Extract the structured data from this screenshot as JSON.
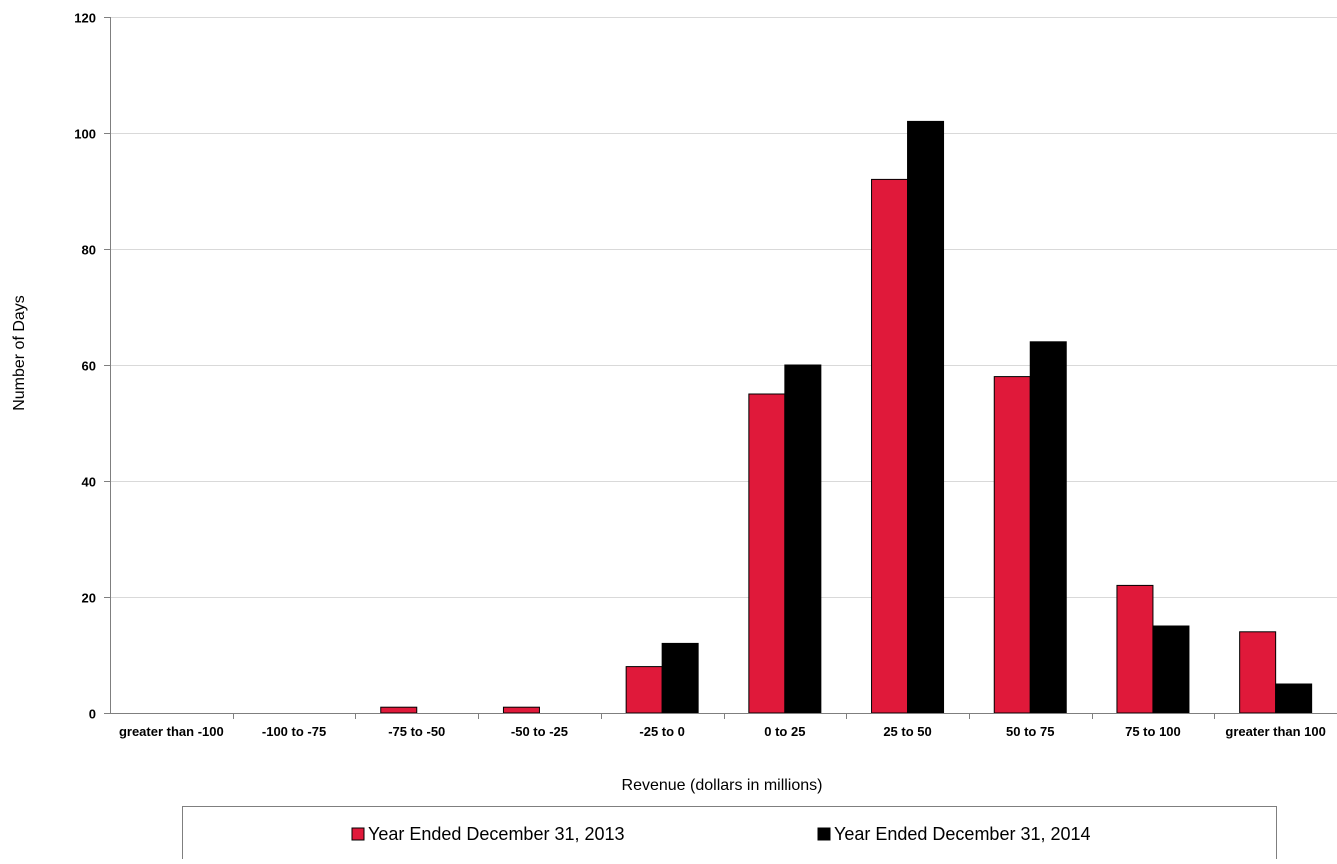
{
  "chart_data": {
    "type": "bar",
    "title": "",
    "xlabel": "Revenue (dollars in millions)",
    "ylabel": "Number of Days",
    "ylim": [
      0,
      120
    ],
    "yticks": [
      0,
      20,
      40,
      60,
      80,
      100,
      120
    ],
    "grid": true,
    "legend_position": "bottom",
    "categories": [
      "greater than -100",
      "-100 to -75",
      "-75 to -50",
      "-50 to -25",
      "-25 to 0",
      "0 to 25",
      "25 to 50",
      "50 to 75",
      "75 to 100",
      "greater than 100"
    ],
    "series": [
      {
        "name": "Year Ended December 31, 2013",
        "color": "#e0193a",
        "values": [
          0,
          0,
          1,
          1,
          8,
          55,
          92,
          58,
          22,
          14
        ]
      },
      {
        "name": "Year Ended December 31, 2014",
        "color": "#000000",
        "values": [
          0,
          0,
          0,
          0,
          12,
          60,
          102,
          64,
          15,
          5
        ]
      }
    ]
  }
}
